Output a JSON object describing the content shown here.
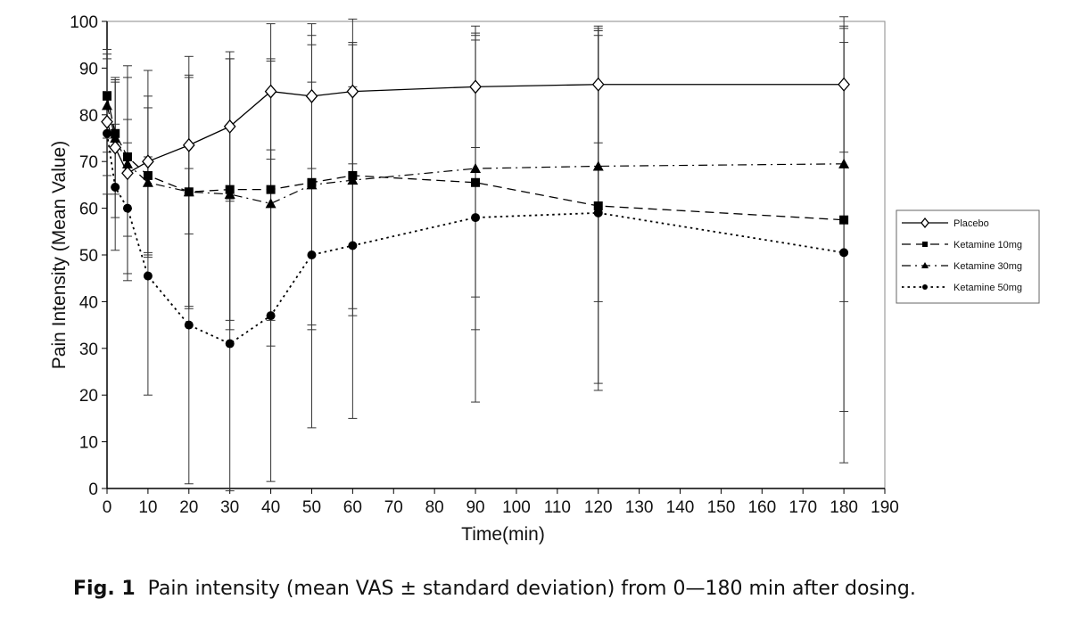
{
  "chart_data": {
    "type": "line",
    "xlabel": "Time(min)",
    "ylabel": "Pain Intensity (Mean Value)",
    "xlim": [
      0,
      190
    ],
    "ylim": [
      0,
      100
    ],
    "xticks": [
      0,
      10,
      20,
      30,
      40,
      50,
      60,
      70,
      80,
      90,
      100,
      110,
      120,
      130,
      140,
      150,
      160,
      170,
      180,
      190
    ],
    "yticks": [
      0,
      10,
      20,
      30,
      40,
      50,
      60,
      70,
      80,
      90,
      100
    ],
    "grid": false,
    "legend_position": "right",
    "x": [
      0,
      2,
      5,
      10,
      20,
      30,
      40,
      50,
      60,
      90,
      120,
      180
    ],
    "series": [
      {
        "name": "Placebo",
        "marker": "diamond-open",
        "dash": "solid",
        "values": [
          78.5,
          73,
          67.5,
          70,
          73.5,
          77.5,
          85,
          84,
          85,
          86,
          86.5,
          86.5
        ],
        "error_high": [
          94,
          88,
          90.5,
          89.5,
          92.5,
          93.5,
          99.5,
          99.5,
          100.5,
          99,
          99,
          101
        ],
        "error_low": [
          63,
          58,
          44.5,
          50.5,
          54.5,
          61.5,
          70.5,
          68.5,
          69.5,
          73,
          74,
          72
        ]
      },
      {
        "name": "Ketamine 10mg",
        "marker": "square",
        "dash": "dashed",
        "values": [
          84,
          76,
          71,
          67,
          63.5,
          64,
          64,
          65.5,
          67,
          65.5,
          60.5,
          57.5
        ],
        "error_high": [
          93,
          87.5,
          88,
          84,
          88.5,
          92,
          92,
          97,
          95.5,
          97,
          98.5,
          98.5
        ],
        "error_low": [
          75,
          64.5,
          54,
          50,
          38.5,
          36,
          36,
          34,
          38.5,
          34,
          22.5,
          16.5
        ]
      },
      {
        "name": "Ketamine 30mg",
        "marker": "triangle",
        "dash": "dashdot",
        "values": [
          82,
          75,
          69.5,
          65.5,
          63.5,
          63,
          61,
          65,
          66,
          68.5,
          69,
          69.5
        ],
        "error_high": [
          92,
          87,
          79,
          81.5,
          88,
          92,
          91.5,
          95,
          95,
          96,
          98,
          99
        ],
        "error_low": [
          72,
          63,
          60,
          49.5,
          39,
          34,
          30.5,
          35,
          37,
          41,
          40,
          40
        ]
      },
      {
        "name": "Ketamine 50mg",
        "marker": "circle",
        "dash": "dotted",
        "values": [
          76,
          64.5,
          60,
          45.5,
          35,
          31,
          37,
          50,
          52,
          58,
          59,
          50.5
        ],
        "error_high": [
          85,
          78,
          74,
          71,
          68.5,
          62,
          72.5,
          87,
          86,
          97.5,
          97,
          95.5
        ],
        "error_low": [
          67,
          51,
          46,
          20,
          1,
          -0.5,
          1.5,
          13,
          15,
          18.5,
          21,
          5.5
        ]
      }
    ]
  },
  "caption": {
    "label": "Fig. 1",
    "text": "Pain intensity (mean VAS ± standard deviation) from 0—180 min after dosing."
  }
}
